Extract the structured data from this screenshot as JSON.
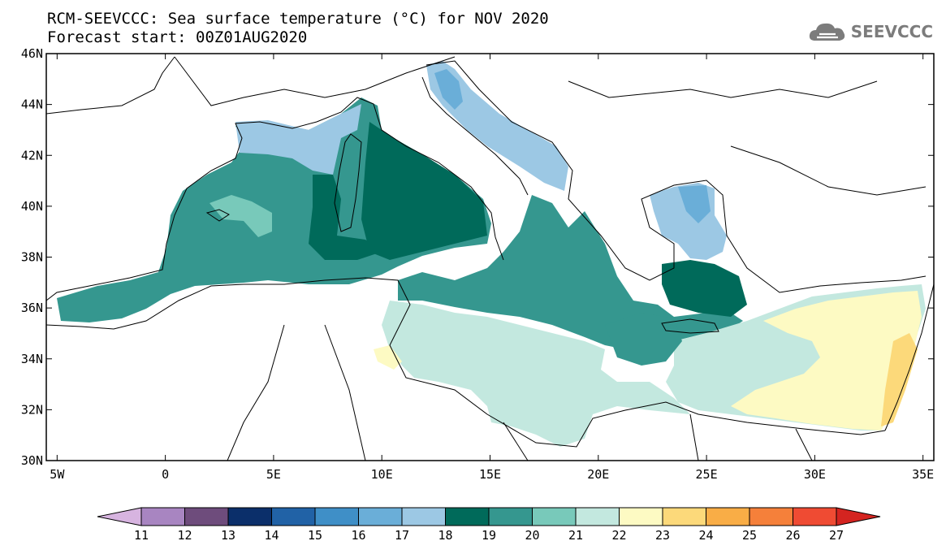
{
  "title": {
    "line1": "RCM-SEEVCCC: Sea surface temperature (°C) for NOV 2020",
    "line2": "Forecast start: 00Z01AUG2020"
  },
  "logo": {
    "text": "SEEVCCC",
    "icon": "cloud-icon"
  },
  "map": {
    "lon_range": [
      -5.5,
      35.5
    ],
    "lat_range": [
      30,
      46
    ],
    "lat_ticks": [
      "46N",
      "44N",
      "42N",
      "40N",
      "38N",
      "36N",
      "34N",
      "32N",
      "30N"
    ],
    "lon_ticks": [
      "5W",
      "0",
      "5E",
      "10E",
      "15E",
      "20E",
      "25E",
      "30E",
      "35E"
    ]
  },
  "colorbar": {
    "labels": [
      "11",
      "12",
      "13",
      "14",
      "15",
      "16",
      "17",
      "18",
      "19",
      "20",
      "21",
      "22",
      "23",
      "24",
      "25",
      "26",
      "27"
    ],
    "colors": [
      "#d7b4e0",
      "#a885c1",
      "#6e4c7c",
      "#0b2f6a",
      "#2162a6",
      "#3f8fc7",
      "#6aaed8",
      "#9cc8e4",
      "#006a5a",
      "#35978f",
      "#78c9ba",
      "#c3e8df",
      "#fdfac3",
      "#fcd97a",
      "#f9ad46",
      "#f5803a",
      "#ef4b33",
      "#d42420"
    ]
  },
  "colors": {
    "land_border": "#000000",
    "frame": "#000000",
    "logo_gray": "#7c7c7c"
  }
}
